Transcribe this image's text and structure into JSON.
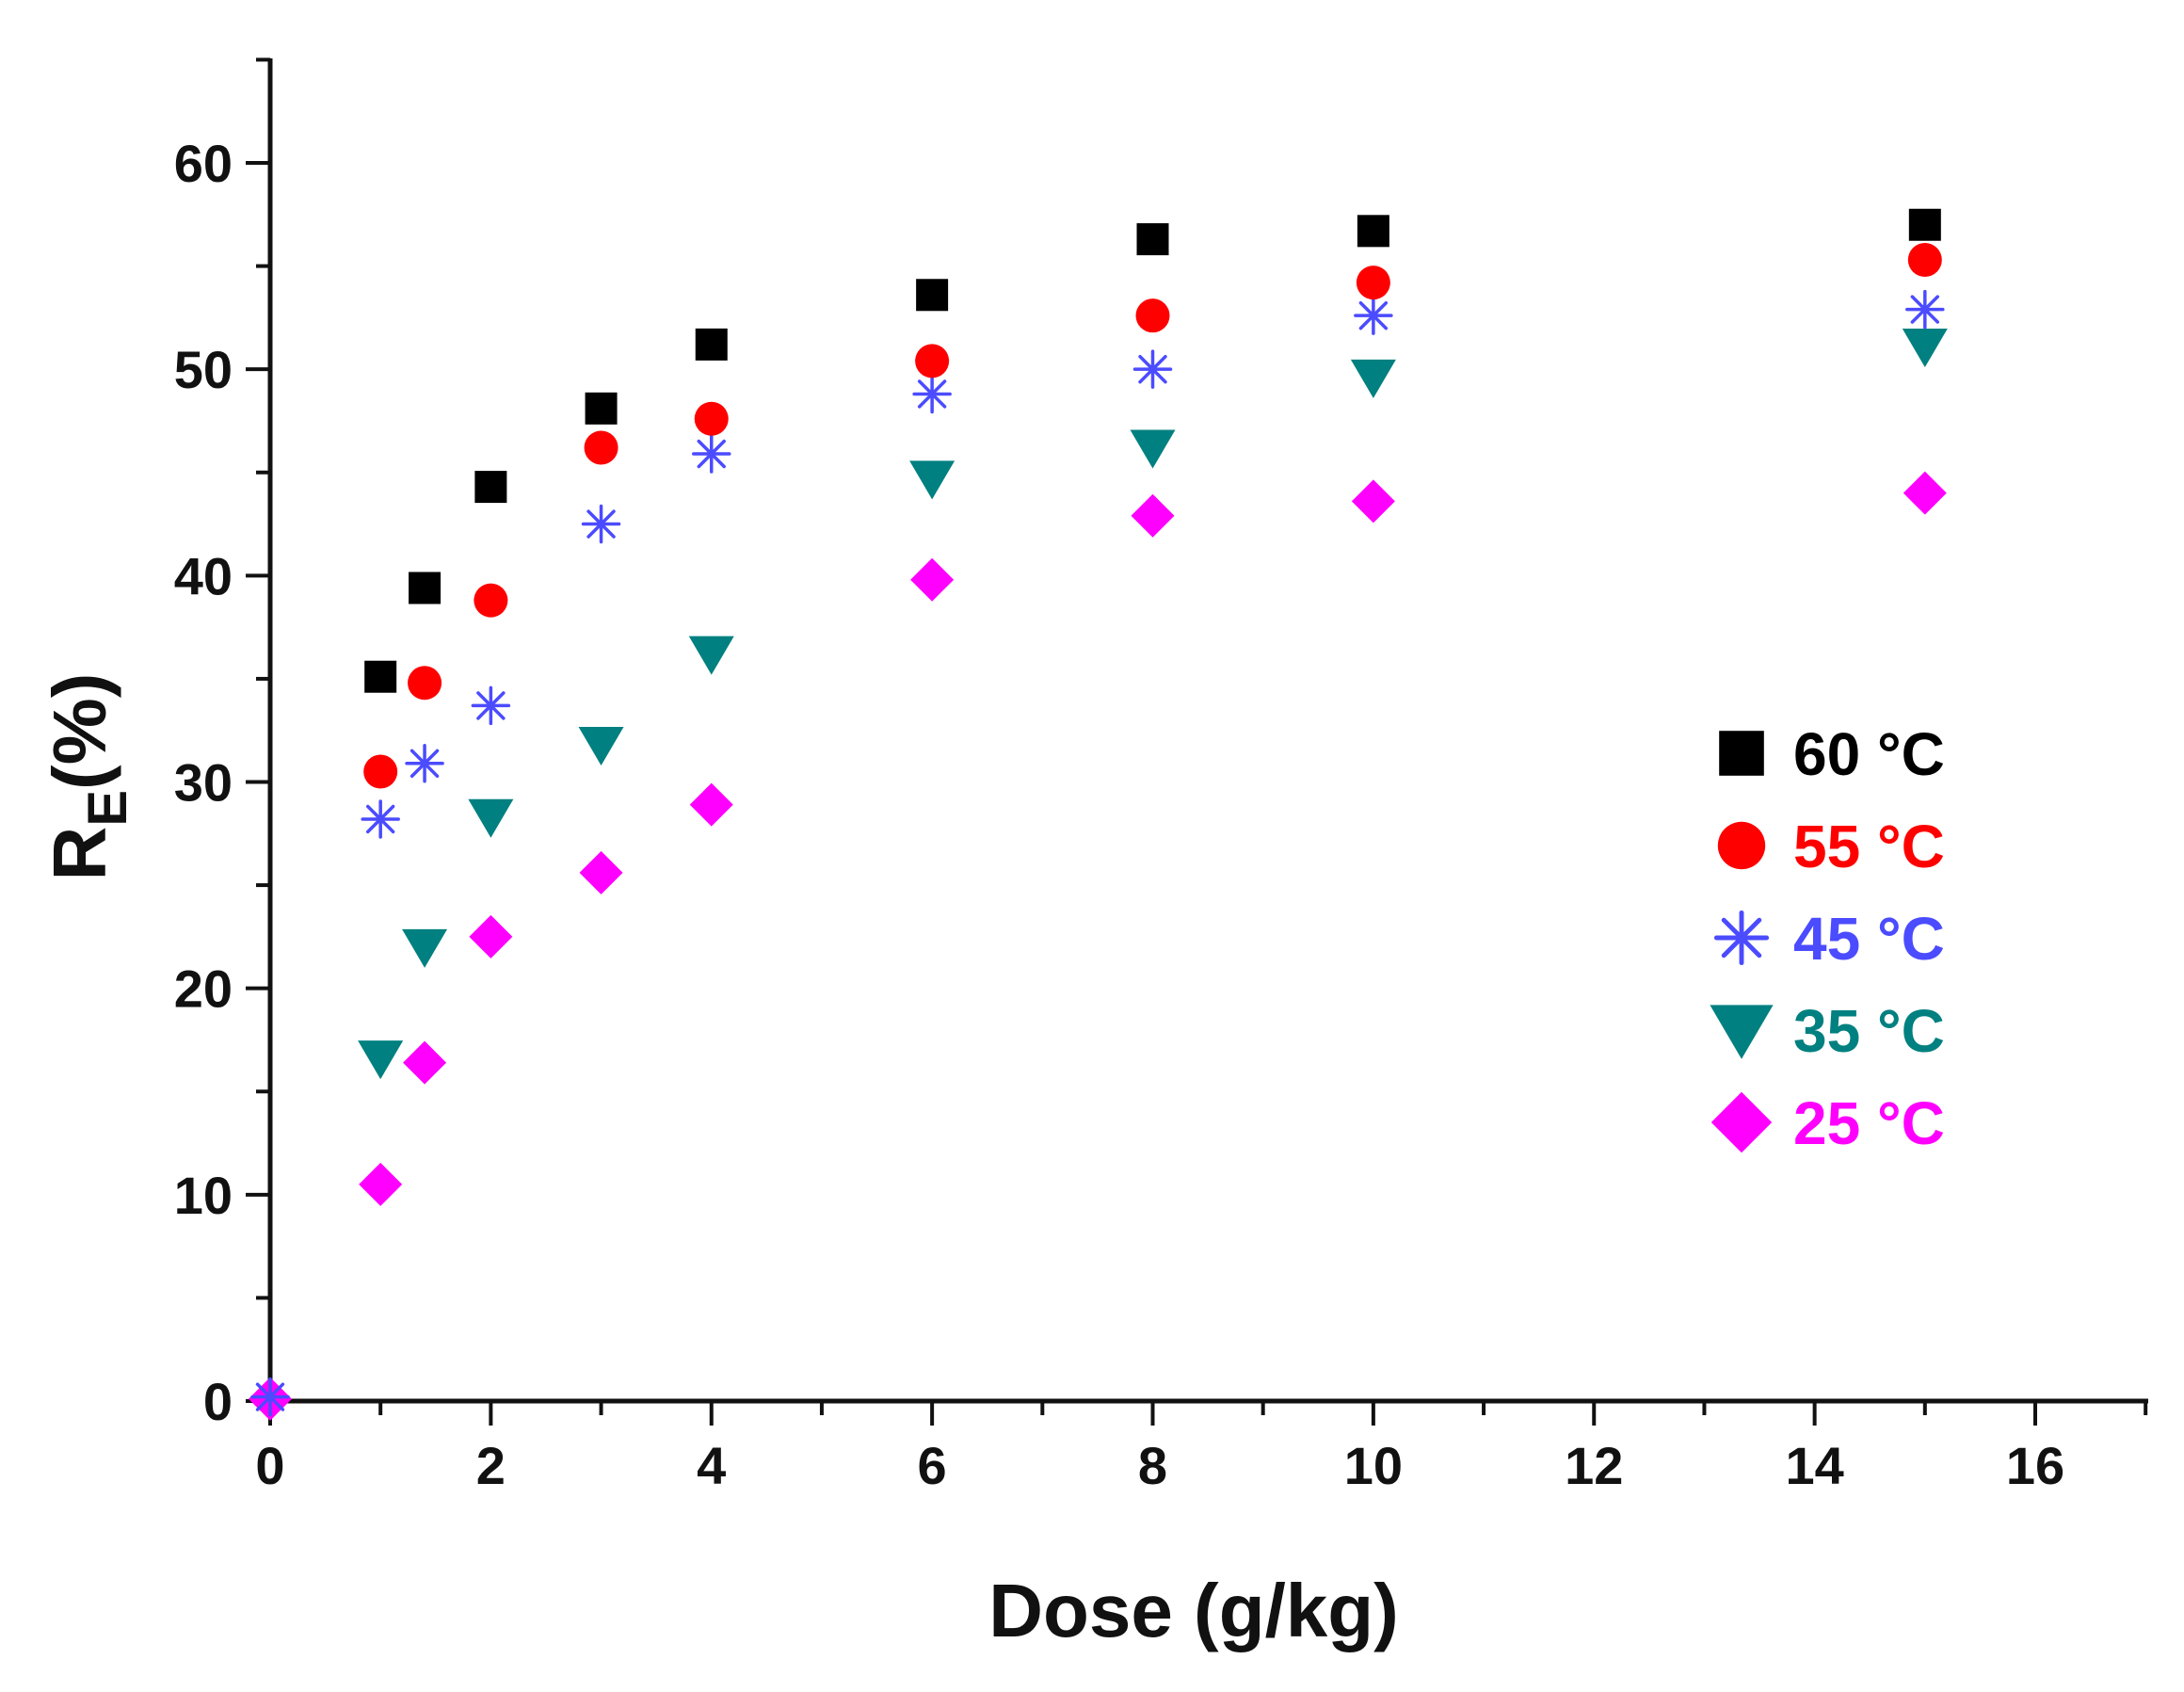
{
  "chart_data": {
    "type": "scatter",
    "title": "",
    "xlabel": "Dose (g/kg)",
    "ylabel_main": "R",
    "ylabel_sub": "E",
    "ylabel_suffix": "(%)",
    "xlim": [
      0,
      17
    ],
    "ylim": [
      0,
      65
    ],
    "xticks": [
      0,
      2,
      4,
      6,
      8,
      10,
      12,
      14,
      16
    ],
    "xtick_labels": [
      "0",
      "2",
      "4",
      "6",
      "8",
      "10",
      "12",
      "14",
      "16"
    ],
    "yticks": [
      0,
      10,
      20,
      30,
      40,
      50,
      60
    ],
    "ytick_labels": [
      "0",
      "10",
      "20",
      "30",
      "40",
      "50",
      "60"
    ],
    "grid": false,
    "legend_position": "right",
    "series": [
      {
        "name": "60 °C",
        "marker": "square",
        "color": "#000000",
        "x": [
          1,
          1.4,
          2,
          3,
          4,
          6,
          8,
          10,
          15
        ],
        "y": [
          35.1,
          39.4,
          44.3,
          48.1,
          51.2,
          53.6,
          56.3,
          56.7,
          57.0
        ]
      },
      {
        "name": "55 °C",
        "marker": "circle",
        "color": "#ff0000",
        "x": [
          1,
          1.4,
          2,
          3,
          4,
          6,
          8,
          10,
          15
        ],
        "y": [
          30.5,
          34.8,
          38.8,
          46.2,
          47.6,
          50.4,
          52.6,
          54.2,
          55.3
        ]
      },
      {
        "name": "45 °C",
        "marker": "asterisk",
        "color": "#4b4bff",
        "x": [
          0,
          1,
          1.4,
          2,
          3,
          4,
          6,
          8,
          10,
          15
        ],
        "y": [
          0.2,
          28.2,
          30.9,
          33.7,
          42.5,
          45.9,
          48.8,
          50.0,
          52.6,
          52.9
        ]
      },
      {
        "name": "35 °C",
        "marker": "triangle-down",
        "color": "#008080",
        "x": [
          1,
          1.4,
          2,
          3,
          4,
          6,
          8,
          10,
          15
        ],
        "y": [
          16.6,
          22.0,
          28.3,
          31.8,
          36.2,
          44.7,
          46.2,
          49.6,
          51.1
        ]
      },
      {
        "name": "25 °C",
        "marker": "diamond",
        "color": "#ff00ff",
        "x": [
          0,
          1,
          1.4,
          2,
          3,
          4,
          6,
          8,
          10,
          15
        ],
        "y": [
          0.1,
          10.5,
          16.4,
          22.5,
          25.6,
          28.9,
          39.8,
          42.9,
          43.6,
          44.0
        ]
      }
    ]
  }
}
